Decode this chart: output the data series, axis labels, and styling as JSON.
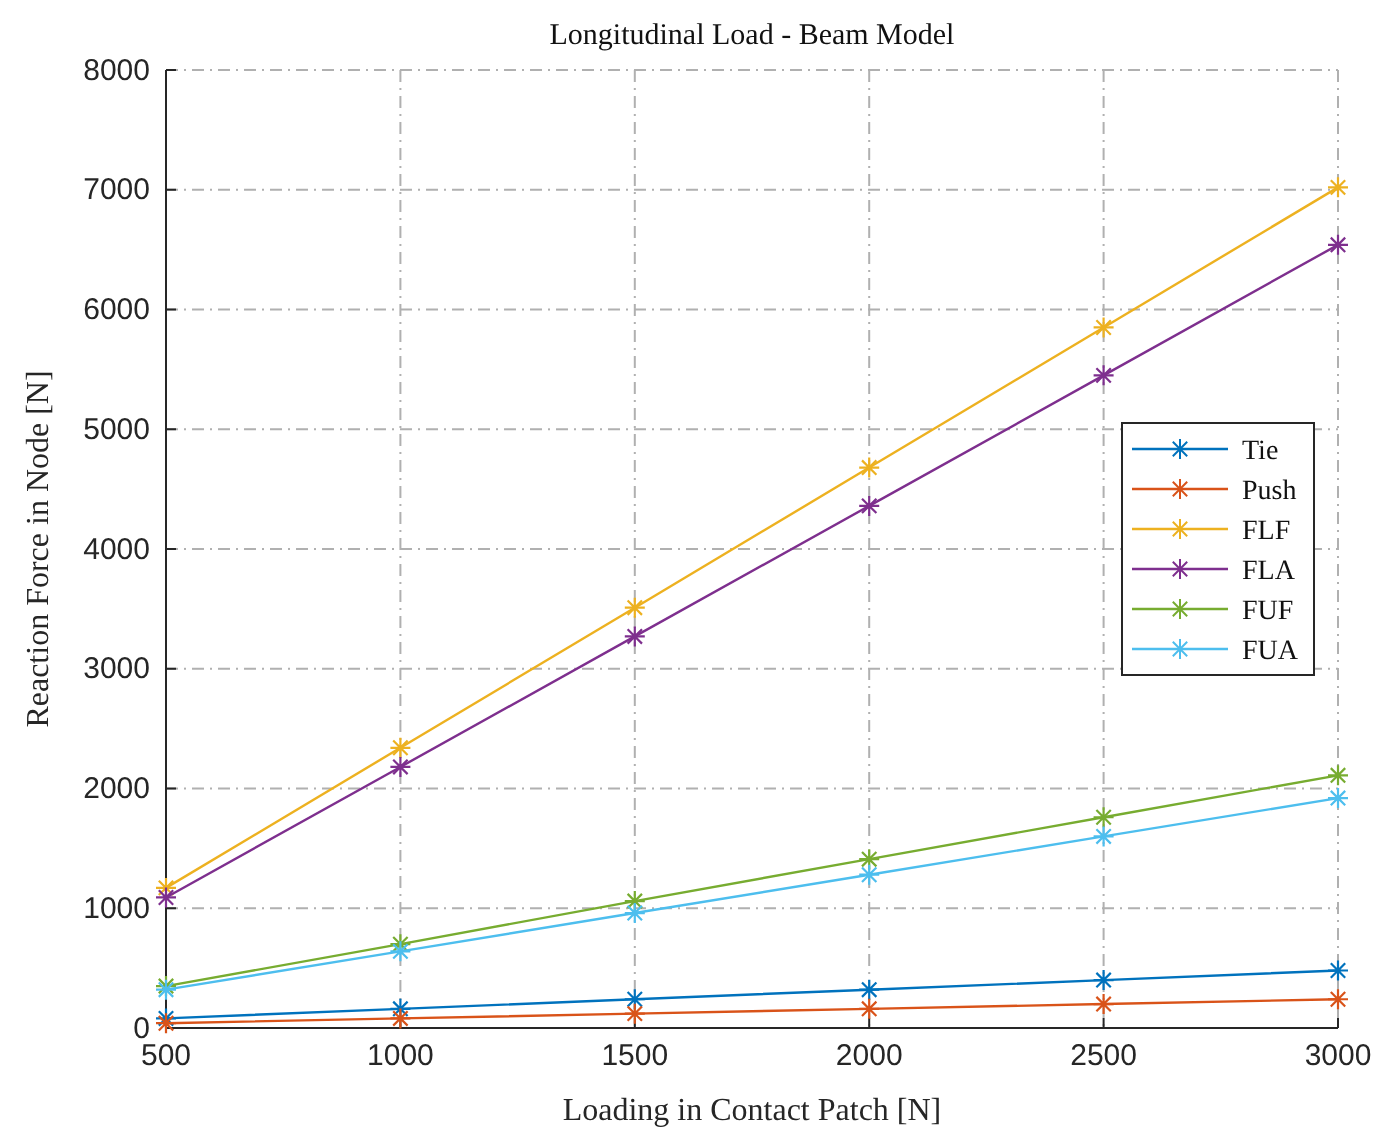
{
  "chart_data": {
    "type": "line",
    "title": "Longitudinal Load - Beam Model",
    "xlabel": "Loading in Contact Patch [N]",
    "ylabel": "Reaction Force in Node [N]",
    "x": [
      500,
      1000,
      1500,
      2000,
      2500,
      3000
    ],
    "xlim": [
      500,
      3000
    ],
    "xticks": [
      500,
      1000,
      1500,
      2000,
      2500,
      3000
    ],
    "ylim": [
      0,
      8000
    ],
    "yticks": [
      0,
      1000,
      2000,
      3000,
      4000,
      5000,
      6000,
      7000,
      8000
    ],
    "grid": true,
    "legend": "right",
    "marker": "cross",
    "line_style": "solid",
    "series": [
      {
        "name": "Tie",
        "color": "#0072bd",
        "values": [
          80,
          160,
          240,
          320,
          400,
          480
        ]
      },
      {
        "name": "Push",
        "color": "#d95319",
        "values": [
          40,
          80,
          120,
          160,
          200,
          240
        ]
      },
      {
        "name": "FLF",
        "color": "#edb120",
        "values": [
          1170,
          2340,
          3510,
          4680,
          5850,
          7020
        ]
      },
      {
        "name": "FLA",
        "color": "#7e2f8e",
        "values": [
          1090,
          2180,
          3270,
          4360,
          5450,
          6540
        ]
      },
      {
        "name": "FUF",
        "color": "#77ac30",
        "values": [
          350,
          700,
          1060,
          1410,
          1760,
          2110
        ]
      },
      {
        "name": "FUA",
        "color": "#4dbeee",
        "values": [
          320,
          640,
          960,
          1280,
          1600,
          1920
        ]
      }
    ]
  }
}
